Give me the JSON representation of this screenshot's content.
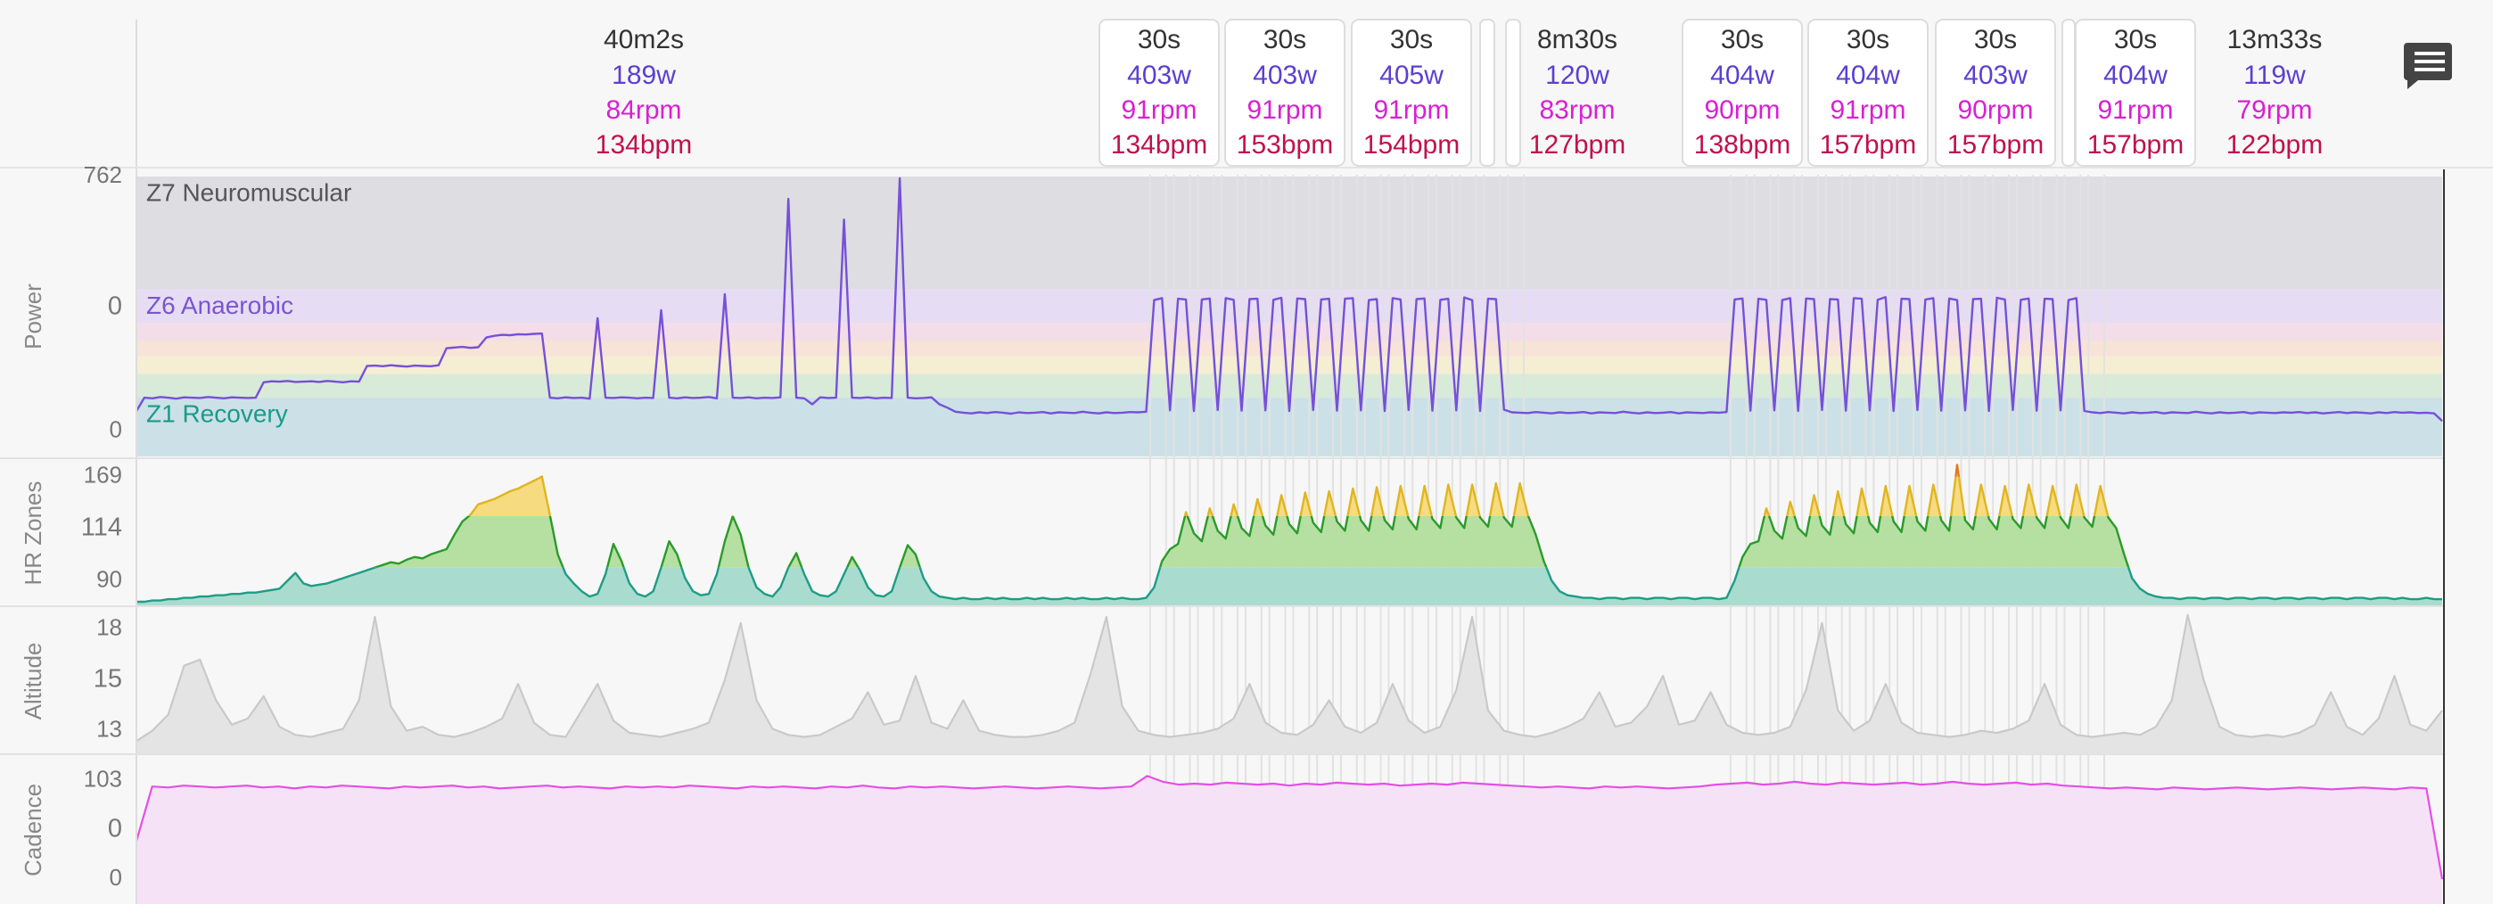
{
  "intervals": [
    {
      "time": "40m2s",
      "watts": "189w",
      "rpm": "84rpm",
      "bpm": "134bpm",
      "boxed": false
    },
    {
      "time": "30s",
      "watts": "403w",
      "rpm": "91rpm",
      "bpm": "134bpm",
      "boxed": true
    },
    {
      "time": "30s",
      "watts": "403w",
      "rpm": "91rpm",
      "bpm": "153bpm",
      "boxed": true
    },
    {
      "time": "30s",
      "watts": "405w",
      "rpm": "91rpm",
      "bpm": "154bpm",
      "boxed": true
    },
    {
      "time": "8m30s",
      "watts": "120w",
      "rpm": "83rpm",
      "bpm": "127bpm",
      "boxed": false
    },
    {
      "time": "30s",
      "watts": "404w",
      "rpm": "90rpm",
      "bpm": "138bpm",
      "boxed": true
    },
    {
      "time": "30s",
      "watts": "404w",
      "rpm": "91rpm",
      "bpm": "157bpm",
      "boxed": true
    },
    {
      "time": "30s",
      "watts": "403w",
      "rpm": "90rpm",
      "bpm": "157bpm",
      "boxed": true
    },
    {
      "time": "30s",
      "watts": "404w",
      "rpm": "91rpm",
      "bpm": "157bpm",
      "boxed": true
    },
    {
      "time": "13m33s",
      "watts": "119w",
      "rpm": "79rpm",
      "bpm": "122bpm",
      "boxed": false
    }
  ],
  "chart_data": [
    {
      "type": "line",
      "ylabel": "Power",
      "ylim": [
        -76,
        762
      ],
      "yticks": [
        0,
        762
      ],
      "readout": 0,
      "readout_color": "#4b2fd6",
      "color": "#7650d8",
      "zones": [
        {
          "from": 424,
          "to": 762,
          "color": "#dedde2",
          "label": "Z7 Neuromuscular",
          "label_color": "#555555"
        },
        {
          "from": 324,
          "to": 424,
          "color": "#e6dcf4",
          "label": "Z6 Anaerobic",
          "label_color": "#7a55d0"
        },
        {
          "from": 271,
          "to": 324,
          "color": "#f3dde8"
        },
        {
          "from": 224,
          "to": 271,
          "color": "#f7e3d7"
        },
        {
          "from": 171,
          "to": 224,
          "color": "#f5eed3"
        },
        {
          "from": 100,
          "to": 171,
          "color": "#d8ebd8"
        },
        {
          "from": -76,
          "to": 100,
          "color": "#cbe1e7",
          "label": "Z1 Recovery",
          "label_color": "#1a9a8a"
        }
      ],
      "values": [
        60,
        100,
        98,
        102,
        100,
        97,
        101,
        100,
        99,
        102,
        100,
        98,
        101,
        100,
        99,
        100,
        146,
        149,
        148,
        150,
        147,
        148,
        149,
        147,
        150,
        148,
        146,
        149,
        148,
        195,
        196,
        194,
        197,
        195,
        193,
        196,
        195,
        194,
        197,
        248,
        250,
        252,
        249,
        251,
        280,
        285,
        288,
        287,
        290,
        289,
        291,
        292,
        100,
        98,
        101,
        99,
        100,
        97,
        338,
        100,
        99,
        101,
        100,
        98,
        100,
        99,
        362,
        100,
        98,
        101,
        99,
        100,
        102,
        98,
        410,
        100,
        99,
        101,
        98,
        100,
        99,
        101,
        695,
        100,
        98,
        80,
        101,
        99,
        100,
        633,
        100,
        99,
        101,
        98,
        100,
        99,
        757,
        100,
        98,
        99,
        101,
        80,
        70,
        58,
        55,
        53,
        56,
        54,
        57,
        55,
        52,
        56,
        54,
        55,
        57,
        53,
        56,
        55,
        54,
        58,
        55,
        53,
        56,
        54,
        55,
        57,
        56,
        58,
        392,
        398,
        62,
        396,
        394,
        60,
        394,
        397,
        63,
        398,
        393,
        61,
        395,
        396,
        62,
        393,
        399,
        60,
        397,
        395,
        63,
        394,
        396,
        61,
        396,
        398,
        62,
        392,
        395,
        60,
        398,
        394,
        63,
        395,
        397,
        61,
        393,
        396,
        62,
        400,
        392,
        60,
        396,
        395,
        64,
        56,
        55,
        54,
        57,
        55,
        53,
        56,
        54,
        55,
        57,
        53,
        56,
        55,
        54,
        58,
        55,
        53,
        56,
        54,
        55,
        57,
        53,
        56,
        55,
        54,
        56,
        55,
        57,
        394,
        397,
        61,
        396,
        393,
        62,
        392,
        398,
        60,
        397,
        395,
        63,
        395,
        394,
        61,
        398,
        396,
        62,
        393,
        401,
        60,
        396,
        395,
        63,
        394,
        398,
        61,
        397,
        392,
        62,
        395,
        396,
        60,
        399,
        394,
        63,
        393,
        397,
        61,
        396,
        395,
        62,
        392,
        398,
        60,
        56,
        54,
        57,
        55,
        53,
        56,
        54,
        55,
        57,
        53,
        56,
        55,
        54,
        58,
        55,
        53,
        56,
        54,
        55,
        57,
        53,
        56,
        55,
        54,
        56,
        55,
        57,
        54,
        56,
        53,
        55,
        57,
        54,
        56,
        55,
        53,
        56,
        54,
        57,
        55,
        56,
        54,
        55,
        53,
        30
      ]
    },
    {
      "type": "line",
      "ylabel": "HR Zones",
      "ylim": [
        72,
        181
      ],
      "yticks": [
        90,
        169
      ],
      "readout": 114,
      "readout_color": "#d0104a",
      "color": "#2a9b2a",
      "zones": [
        {
          "from": 72,
          "to": 100,
          "color": "#a9dccf",
          "line": "#1e9c86"
        },
        {
          "from": 100,
          "to": 139,
          "color": "#b6dfa2",
          "line": "#2a9b2a"
        },
        {
          "from": 139,
          "to": 169,
          "color": "#f6db80",
          "line": "#e0b520"
        },
        {
          "from": 169,
          "to": 181,
          "color": "#f7c08a",
          "line": "#e07a20"
        }
      ],
      "values": [
        74,
        74,
        75,
        75,
        76,
        76,
        77,
        77,
        78,
        78,
        79,
        79,
        80,
        80,
        81,
        81,
        82,
        83,
        84,
        90,
        96,
        88,
        86,
        87,
        88,
        90,
        92,
        94,
        96,
        98,
        100,
        102,
        104,
        103,
        106,
        108,
        107,
        110,
        112,
        114,
        125,
        135,
        140,
        148,
        150,
        152,
        155,
        158,
        160,
        163,
        166,
        169,
        140,
        110,
        95,
        88,
        82,
        78,
        80,
        95,
        118,
        105,
        88,
        80,
        78,
        82,
        100,
        120,
        110,
        92,
        82,
        79,
        80,
        95,
        120,
        139,
        125,
        100,
        85,
        80,
        78,
        85,
        100,
        111,
        95,
        82,
        79,
        78,
        82,
        95,
        108,
        98,
        85,
        79,
        78,
        82,
        100,
        117,
        110,
        92,
        82,
        78,
        77,
        76,
        77,
        76,
        76,
        77,
        76,
        77,
        76,
        76,
        77,
        76,
        77,
        76,
        76,
        77,
        76,
        77,
        76,
        76,
        77,
        76,
        77,
        76,
        76,
        77,
        85,
        105,
        114,
        118,
        142,
        126,
        120,
        145,
        128,
        122,
        148,
        130,
        124,
        152,
        132,
        125,
        155,
        133,
        126,
        157,
        134,
        127,
        158,
        135,
        128,
        160,
        136,
        128,
        161,
        136,
        129,
        162,
        137,
        129,
        162,
        137,
        130,
        163,
        138,
        130,
        163,
        138,
        131,
        164,
        138,
        131,
        164,
        140,
        125,
        105,
        90,
        82,
        79,
        78,
        77,
        77,
        76,
        77,
        77,
        76,
        77,
        77,
        76,
        77,
        77,
        76,
        77,
        77,
        76,
        77,
        77,
        76,
        77,
        90,
        108,
        118,
        120,
        145,
        128,
        122,
        150,
        130,
        124,
        155,
        132,
        125,
        158,
        133,
        126,
        160,
        134,
        127,
        162,
        135,
        127,
        162,
        135,
        128,
        163,
        136,
        128,
        178,
        136,
        129,
        163,
        137,
        129,
        162,
        137,
        130,
        163,
        138,
        130,
        162,
        138,
        130,
        163,
        138,
        131,
        162,
        138,
        130,
        110,
        92,
        84,
        80,
        78,
        77,
        77,
        76,
        77,
        77,
        76,
        77,
        77,
        76,
        77,
        77,
        76,
        77,
        77,
        76,
        77,
        77,
        76,
        77,
        77,
        76,
        77,
        77,
        76,
        77,
        77,
        76,
        77,
        77,
        76,
        77,
        76,
        76,
        77,
        76,
        76
      ]
    },
    {
      "type": "line",
      "ylabel": "Altitude",
      "ylim": [
        12.2,
        18.86
      ],
      "yticks": [
        13,
        18
      ],
      "readout": 15,
      "readout_color": "#222222",
      "color": "#c9c9c9",
      "fill": "#e4e4e4",
      "values": [
        12.5,
        13.0,
        13.8,
        16.2,
        16.5,
        14.5,
        13.3,
        13.6,
        14.7,
        13.2,
        12.8,
        12.7,
        12.9,
        13.1,
        14.5,
        18.6,
        14.2,
        13.0,
        13.2,
        12.8,
        12.7,
        12.9,
        13.2,
        13.6,
        15.3,
        13.4,
        12.8,
        12.7,
        14.0,
        15.3,
        13.5,
        12.9,
        12.8,
        12.7,
        12.9,
        13.1,
        13.4,
        15.5,
        18.3,
        14.5,
        13.1,
        12.8,
        12.7,
        12.8,
        13.2,
        13.6,
        14.9,
        13.3,
        13.5,
        15.7,
        13.4,
        13.1,
        14.5,
        13.0,
        12.8,
        12.7,
        12.7,
        12.8,
        13.0,
        13.4,
        15.8,
        18.6,
        14.2,
        13.0,
        12.8,
        12.7,
        12.8,
        12.9,
        13.1,
        13.6,
        15.3,
        13.4,
        12.9,
        12.8,
        13.3,
        14.5,
        13.2,
        12.9,
        13.4,
        15.3,
        13.5,
        12.9,
        13.2,
        15.0,
        18.6,
        14.0,
        13.0,
        12.8,
        12.7,
        12.9,
        13.2,
        13.6,
        14.9,
        13.2,
        13.4,
        14.2,
        15.7,
        13.3,
        13.5,
        14.9,
        13.3,
        12.9,
        12.8,
        12.9,
        13.2,
        15.0,
        18.3,
        14.0,
        13.0,
        13.5,
        15.3,
        13.4,
        12.9,
        12.8,
        12.7,
        12.8,
        13.0,
        12.9,
        13.1,
        13.5,
        15.3,
        13.3,
        12.8,
        12.7,
        12.8,
        12.9,
        12.8,
        13.2,
        14.5,
        18.7,
        15.5,
        13.2,
        12.8,
        12.7,
        12.8,
        12.7,
        12.9,
        13.3,
        14.9,
        13.2,
        12.8,
        13.6,
        15.7,
        13.3,
        13.0,
        14.0
      ]
    },
    {
      "type": "line",
      "ylabel": "Cadence",
      "ylim": [
        -25,
        128
      ],
      "yticks": [
        0,
        103
      ],
      "readout": 0,
      "readout_color": "#e020d8",
      "color": "#e44fe6",
      "fill": "#f6e2f6",
      "values": [
        40,
        97,
        96,
        98,
        97,
        96,
        97,
        98,
        96,
        97,
        95,
        97,
        96,
        98,
        97,
        96,
        95,
        97,
        96,
        97,
        98,
        96,
        97,
        95,
        96,
        97,
        98,
        96,
        97,
        96,
        95,
        97,
        96,
        97,
        96,
        98,
        97,
        96,
        95,
        97,
        96,
        97,
        96,
        95,
        97,
        96,
        98,
        96,
        95,
        97,
        96,
        97,
        96,
        95,
        96,
        97,
        96,
        95,
        96,
        97,
        96,
        95,
        96,
        97,
        108,
        102,
        99,
        100,
        99,
        101,
        100,
        99,
        100,
        98,
        100,
        99,
        101,
        100,
        99,
        100,
        98,
        99,
        100,
        99,
        101,
        100,
        99,
        98,
        97,
        96,
        97,
        96,
        95,
        97,
        96,
        97,
        96,
        95,
        96,
        97,
        99,
        100,
        101,
        99,
        100,
        102,
        100,
        99,
        101,
        100,
        99,
        100,
        101,
        99,
        100,
        102,
        100,
        99,
        100,
        101,
        99,
        100,
        98,
        97,
        96,
        95,
        96,
        95,
        94,
        96,
        95,
        94,
        95,
        96,
        95,
        94,
        95,
        96,
        95,
        94,
        95,
        96,
        95,
        94,
        96,
        95,
        0
      ]
    }
  ]
}
